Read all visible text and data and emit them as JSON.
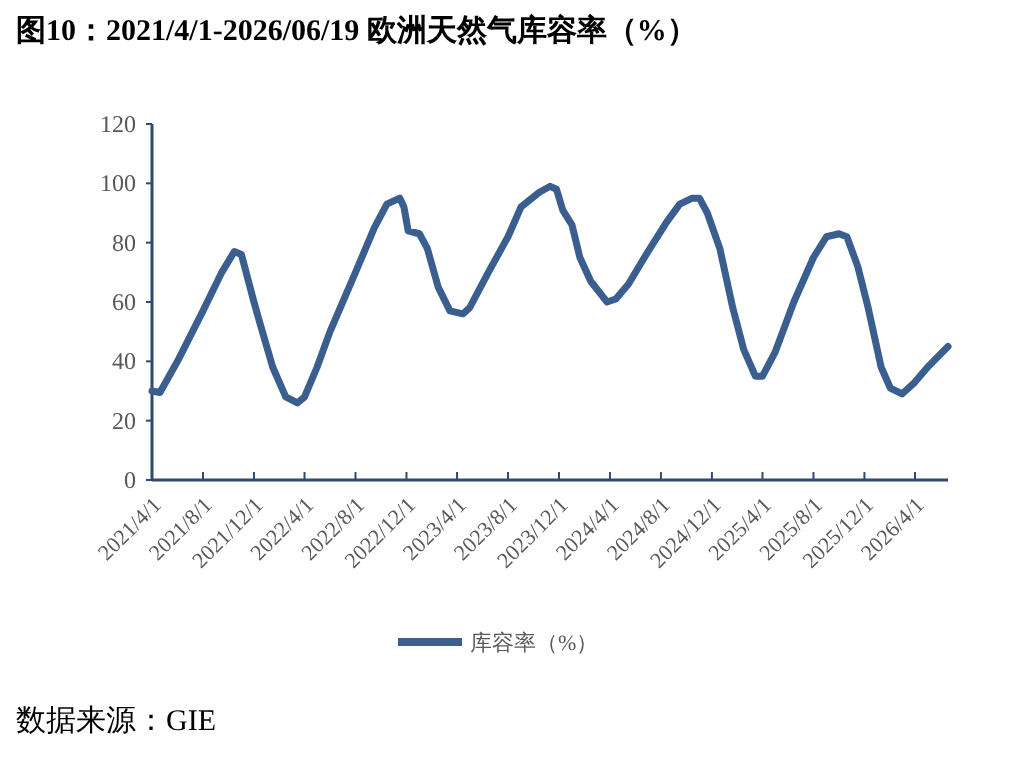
{
  "chart_data": {
    "type": "line",
    "title": "图10：2021/4/1-2026/06/19 欧洲天然气库容率（%）",
    "x": [
      "2021-04-01",
      "2021-04-20",
      "2021-06-01",
      "2021-08-01",
      "2021-09-15",
      "2021-10-15",
      "2021-11-01",
      "2021-12-01",
      "2021-12-15",
      "2022-01-15",
      "2022-02-15",
      "2022-03-15",
      "2022-04-01",
      "2022-05-01",
      "2022-06-01",
      "2022-08-01",
      "2022-09-15",
      "2022-10-15",
      "2022-11-15",
      "2022-11-25",
      "2022-12-05",
      "2023-01-01",
      "2023-01-20",
      "2023-02-15",
      "2023-03-15",
      "2023-04-15",
      "2023-05-01",
      "2023-06-15",
      "2023-08-01",
      "2023-09-01",
      "2023-10-15",
      "2023-11-10",
      "2023-11-25",
      "2023-12-10",
      "2024-01-01",
      "2024-01-20",
      "2024-02-15",
      "2024-03-25",
      "2024-04-15",
      "2024-05-15",
      "2024-07-01",
      "2024-08-15",
      "2024-09-15",
      "2024-10-15",
      "2024-11-01",
      "2024-11-20",
      "2024-12-20",
      "2025-01-20",
      "2025-02-15",
      "2025-03-15",
      "2025-04-01",
      "2025-05-01",
      "2025-06-15",
      "2025-08-01",
      "2025-09-01",
      "2025-10-01",
      "2025-10-20",
      "2025-11-15",
      "2025-12-10",
      "2026-01-10",
      "2026-02-01",
      "2026-03-01",
      "2026-04-01",
      "2026-05-01",
      "2026-06-19"
    ],
    "series": [
      {
        "name": "库容率（%）",
        "color": "#3a5f8f",
        "values": [
          30,
          29.5,
          40,
          57,
          70,
          77,
          76,
          60,
          53,
          38,
          28,
          26,
          28,
          38,
          50,
          70,
          85,
          93,
          95,
          92,
          84,
          83,
          78,
          65,
          57,
          56,
          58,
          70,
          82,
          92,
          97,
          99,
          98,
          91,
          86,
          75,
          67,
          60,
          61,
          66,
          77,
          87,
          93,
          95,
          95,
          90,
          78,
          58,
          44,
          35,
          35,
          43,
          60,
          75,
          82,
          83,
          82,
          72,
          58,
          38,
          31,
          29,
          33,
          38,
          45
        ]
      }
    ],
    "xlim": [
      "2021-04-01",
      "2026-06-19"
    ],
    "xticks": [
      {
        "value": "2021-04-01",
        "label": "2021/4/1"
      },
      {
        "value": "2021-08-01",
        "label": "2021/8/1"
      },
      {
        "value": "2021-12-01",
        "label": "2021/12/1"
      },
      {
        "value": "2022-04-01",
        "label": "2022/4/1"
      },
      {
        "value": "2022-08-01",
        "label": "2022/8/1"
      },
      {
        "value": "2022-12-01",
        "label": "2022/12/1"
      },
      {
        "value": "2023-04-01",
        "label": "2023/4/1"
      },
      {
        "value": "2023-08-01",
        "label": "2023/8/1"
      },
      {
        "value": "2023-12-01",
        "label": "2023/12/1"
      },
      {
        "value": "2024-04-01",
        "label": "2024/4/1"
      },
      {
        "value": "2024-08-01",
        "label": "2024/8/1"
      },
      {
        "value": "2024-12-01",
        "label": "2024/12/1"
      },
      {
        "value": "2025-04-01",
        "label": "2025/4/1"
      },
      {
        "value": "2025-08-01",
        "label": "2025/8/1"
      },
      {
        "value": "2025-12-01",
        "label": "2025/12/1"
      },
      {
        "value": "2026-04-01",
        "label": "2026/4/1"
      }
    ],
    "ylim": [
      0,
      120
    ],
    "yticks": [
      0,
      20,
      40,
      60,
      80,
      100,
      120
    ],
    "legend": "bottom",
    "annotations": [
      "数据来源：GIE"
    ]
  }
}
